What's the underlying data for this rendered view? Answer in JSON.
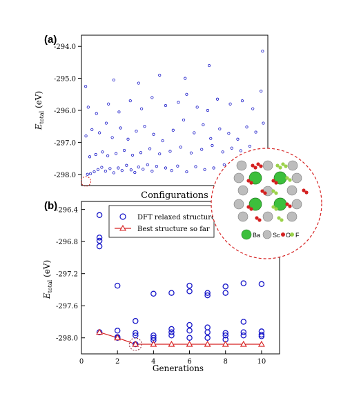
{
  "chart_data": [
    {
      "panel_label": "(a)",
      "type": "scatter",
      "xlabel": "Configurations",
      "ylabel_main": "E",
      "ylabel_sub": "total",
      "ylabel_unit": " (eV)",
      "ylim": [
        -298.35,
        -293.65
      ],
      "yticks": [
        -294.0,
        -295.0,
        -296.0,
        -297.0,
        -298.0
      ],
      "ytick_labels": [
        "-294.0",
        "-295.0",
        "-296.0",
        "-297.0",
        "-298.0"
      ],
      "grid": false,
      "marker": "open-circle",
      "marker_color": "#1515c8",
      "highlight_color": "#d62020",
      "highlight_point": {
        "x": 30,
        "y": -298.22
      },
      "points": [
        {
          "x": 40,
          "y": -298.0
        },
        {
          "x": 60,
          "y": -297.98
        },
        {
          "x": 85,
          "y": -297.92
        },
        {
          "x": 110,
          "y": -297.85
        },
        {
          "x": 135,
          "y": -297.78
        },
        {
          "x": 160,
          "y": -297.9
        },
        {
          "x": 190,
          "y": -297.82
        },
        {
          "x": 215,
          "y": -297.95
        },
        {
          "x": 245,
          "y": -297.8
        },
        {
          "x": 270,
          "y": -297.88
        },
        {
          "x": 300,
          "y": -297.72
        },
        {
          "x": 330,
          "y": -297.86
        },
        {
          "x": 355,
          "y": -297.94
        },
        {
          "x": 380,
          "y": -297.77
        },
        {
          "x": 410,
          "y": -297.84
        },
        {
          "x": 440,
          "y": -297.7
        },
        {
          "x": 470,
          "y": -297.9
        },
        {
          "x": 500,
          "y": -297.75
        },
        {
          "x": 560,
          "y": -297.8
        },
        {
          "x": 600,
          "y": -297.88
        },
        {
          "x": 640,
          "y": -297.74
        },
        {
          "x": 700,
          "y": -297.92
        },
        {
          "x": 760,
          "y": -297.76
        },
        {
          "x": 820,
          "y": -297.85
        },
        {
          "x": 880,
          "y": -297.8
        },
        {
          "x": 950,
          "y": -297.7
        },
        {
          "x": 1010,
          "y": -297.88
        },
        {
          "x": 1080,
          "y": -297.72
        },
        {
          "x": 1150,
          "y": -297.83
        },
        {
          "x": 1200,
          "y": -297.78
        },
        {
          "x": 55,
          "y": -297.45
        },
        {
          "x": 95,
          "y": -297.38
        },
        {
          "x": 140,
          "y": -297.3
        },
        {
          "x": 175,
          "y": -297.42
        },
        {
          "x": 230,
          "y": -297.35
        },
        {
          "x": 285,
          "y": -297.25
        },
        {
          "x": 340,
          "y": -297.4
        },
        {
          "x": 395,
          "y": -297.32
        },
        {
          "x": 455,
          "y": -297.2
        },
        {
          "x": 520,
          "y": -297.36
        },
        {
          "x": 590,
          "y": -297.28
        },
        {
          "x": 660,
          "y": -297.15
        },
        {
          "x": 730,
          "y": -297.33
        },
        {
          "x": 800,
          "y": -297.22
        },
        {
          "x": 870,
          "y": -297.1
        },
        {
          "x": 940,
          "y": -297.3
        },
        {
          "x": 1000,
          "y": -297.18
        },
        {
          "x": 1060,
          "y": -297.26
        },
        {
          "x": 1120,
          "y": -297.12
        },
        {
          "x": 1180,
          "y": -297.35
        },
        {
          "x": 30,
          "y": -296.8
        },
        {
          "x": 70,
          "y": -296.6
        },
        {
          "x": 120,
          "y": -296.7
        },
        {
          "x": 165,
          "y": -296.4
        },
        {
          "x": 205,
          "y": -296.85
        },
        {
          "x": 260,
          "y": -296.55
        },
        {
          "x": 310,
          "y": -296.9
        },
        {
          "x": 365,
          "y": -296.65
        },
        {
          "x": 420,
          "y": -296.5
        },
        {
          "x": 480,
          "y": -296.75
        },
        {
          "x": 540,
          "y": -296.95
        },
        {
          "x": 610,
          "y": -296.62
        },
        {
          "x": 680,
          "y": -296.3
        },
        {
          "x": 750,
          "y": -296.7
        },
        {
          "x": 810,
          "y": -296.45
        },
        {
          "x": 860,
          "y": -296.88
        },
        {
          "x": 920,
          "y": -296.58
        },
        {
          "x": 980,
          "y": -296.72
        },
        {
          "x": 1040,
          "y": -296.9
        },
        {
          "x": 1100,
          "y": -296.52
        },
        {
          "x": 1160,
          "y": -296.68
        },
        {
          "x": 1210,
          "y": -296.4
        },
        {
          "x": 45,
          "y": -295.9
        },
        {
          "x": 100,
          "y": -296.1
        },
        {
          "x": 180,
          "y": -295.8
        },
        {
          "x": 250,
          "y": -296.05
        },
        {
          "x": 325,
          "y": -295.7
        },
        {
          "x": 400,
          "y": -295.95
        },
        {
          "x": 470,
          "y": -295.6
        },
        {
          "x": 560,
          "y": -295.85
        },
        {
          "x": 645,
          "y": -295.75
        },
        {
          "x": 700,
          "y": -295.5
        },
        {
          "x": 770,
          "y": -295.9
        },
        {
          "x": 840,
          "y": -296.0
        },
        {
          "x": 905,
          "y": -295.65
        },
        {
          "x": 990,
          "y": -295.8
        },
        {
          "x": 1070,
          "y": -295.7
        },
        {
          "x": 1140,
          "y": -295.95
        },
        {
          "x": 1195,
          "y": -295.4
        },
        {
          "x": 28,
          "y": -295.25
        },
        {
          "x": 215,
          "y": -295.05
        },
        {
          "x": 380,
          "y": -295.15
        },
        {
          "x": 520,
          "y": -294.9
        },
        {
          "x": 690,
          "y": -295.0
        },
        {
          "x": 850,
          "y": -294.6
        },
        {
          "x": 1205,
          "y": -294.15
        }
      ]
    },
    {
      "panel_label": "(b)",
      "type": "scatter",
      "xlabel": "Generations",
      "ylabel_main": "E",
      "ylabel_sub": "total",
      "ylabel_unit": " (eV)",
      "xlim": [
        0,
        11
      ],
      "xticks": [
        0,
        2,
        4,
        6,
        8,
        10
      ],
      "xtick_labels": [
        "0",
        "2",
        "4",
        "6",
        "8",
        "10"
      ],
      "ylim": [
        -298.2,
        -296.3
      ],
      "yticks": [
        -296.4,
        -296.8,
        -297.2,
        -297.6,
        -298.0
      ],
      "ytick_labels": [
        "-296.4",
        "-296.8",
        "-297.2",
        "-297.6",
        "-298.0"
      ],
      "grid": false,
      "legend_position": "top-right",
      "colors": {
        "dft": "#1515c8",
        "best": "#d62020"
      },
      "series": [
        {
          "name": "DFT relaxed structure",
          "style": "open-circle",
          "points": [
            {
              "x": 1,
              "y": -296.47
            },
            {
              "x": 1,
              "y": -296.75
            },
            {
              "x": 1,
              "y": -296.79
            },
            {
              "x": 1,
              "y": -296.86
            },
            {
              "x": 1,
              "y": -297.93
            },
            {
              "x": 2,
              "y": -297.35
            },
            {
              "x": 2,
              "y": -297.91
            },
            {
              "x": 2,
              "y": -297.99
            },
            {
              "x": 2,
              "y": -298.0
            },
            {
              "x": 3,
              "y": -297.79
            },
            {
              "x": 3,
              "y": -297.94
            },
            {
              "x": 3,
              "y": -297.97
            },
            {
              "x": 3,
              "y": -298.08
            },
            {
              "x": 4,
              "y": -297.45
            },
            {
              "x": 4,
              "y": -297.97
            },
            {
              "x": 4,
              "y": -298.0
            },
            {
              "x": 4,
              "y": -298.03
            },
            {
              "x": 5,
              "y": -297.44
            },
            {
              "x": 5,
              "y": -297.89
            },
            {
              "x": 5,
              "y": -297.93
            },
            {
              "x": 5,
              "y": -297.97
            },
            {
              "x": 6,
              "y": -297.35
            },
            {
              "x": 6,
              "y": -297.42
            },
            {
              "x": 6,
              "y": -297.84
            },
            {
              "x": 6,
              "y": -297.91
            },
            {
              "x": 6,
              "y": -298.0
            },
            {
              "x": 7,
              "y": -297.44
            },
            {
              "x": 7,
              "y": -297.47
            },
            {
              "x": 7,
              "y": -297.87
            },
            {
              "x": 7,
              "y": -297.93
            },
            {
              "x": 7,
              "y": -298.0
            },
            {
              "x": 8,
              "y": -297.36
            },
            {
              "x": 8,
              "y": -297.44
            },
            {
              "x": 8,
              "y": -297.94
            },
            {
              "x": 8,
              "y": -297.97
            },
            {
              "x": 8,
              "y": -298.02
            },
            {
              "x": 9,
              "y": -297.32
            },
            {
              "x": 9,
              "y": -297.8
            },
            {
              "x": 9,
              "y": -297.93
            },
            {
              "x": 9,
              "y": -297.97
            },
            {
              "x": 10,
              "y": -297.33
            },
            {
              "x": 10,
              "y": -297.92
            },
            {
              "x": 10,
              "y": -297.96
            },
            {
              "x": 10,
              "y": -297.98
            }
          ]
        },
        {
          "name": "Best structure so far",
          "style": "line-open-triangle",
          "points": [
            {
              "x": 1,
              "y": -297.93
            },
            {
              "x": 2,
              "y": -298.0
            },
            {
              "x": 3,
              "y": -298.08
            },
            {
              "x": 4,
              "y": -298.08
            },
            {
              "x": 5,
              "y": -298.08
            },
            {
              "x": 6,
              "y": -298.08
            },
            {
              "x": 7,
              "y": -298.08
            },
            {
              "x": 8,
              "y": -298.08
            },
            {
              "x": 9,
              "y": -298.08
            },
            {
              "x": 10,
              "y": -298.08
            }
          ]
        }
      ],
      "highlight_point": {
        "x": 3,
        "y": -298.08
      }
    }
  ],
  "inset": {
    "legend": [
      {
        "label": "Ba",
        "color": "#3cbf3c"
      },
      {
        "label": "Sc",
        "color": "#bdbdbd"
      },
      {
        "label": "O",
        "color": "#d42020"
      },
      {
        "label": "F",
        "color": "#9bd24a"
      }
    ]
  }
}
